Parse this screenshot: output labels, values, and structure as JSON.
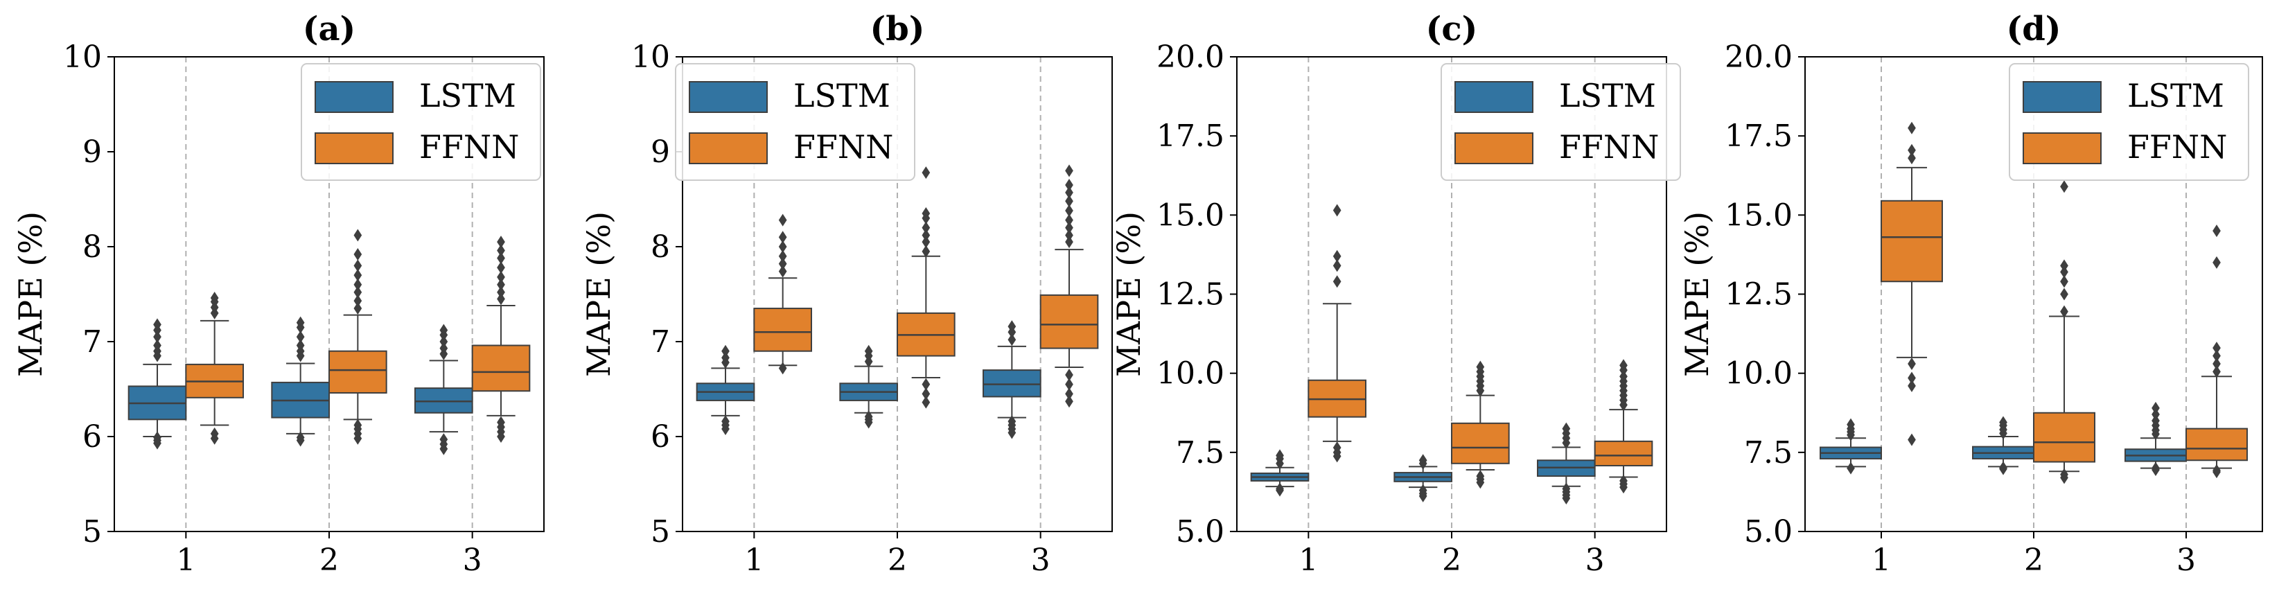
{
  "colors": {
    "lstm": "#3274a1",
    "ffnn": "#e1812c",
    "edge": "#3f3f3f",
    "grid": "#b0b0b0",
    "axis": "#000000"
  },
  "chart_data": [
    {
      "type": "boxplot",
      "title": "(a)",
      "xlabel": "",
      "ylabel": "MAPE (%)",
      "categories": [
        "1",
        "2",
        "3"
      ],
      "ylim": [
        5,
        10
      ],
      "yticks": [
        5,
        6,
        7,
        8,
        9,
        10
      ],
      "ytick_labels": [
        "5",
        "6",
        "7",
        "8",
        "9",
        "10"
      ],
      "legend": {
        "position": "top-right",
        "entries": [
          "LSTM",
          "FFNN"
        ]
      },
      "grid": {
        "x": true,
        "y": false
      },
      "series": [
        {
          "name": "LSTM",
          "boxes": [
            {
              "min": 6.0,
              "q1": 6.18,
              "median": 6.35,
              "q3": 6.53,
              "max": 6.76,
              "outliers": [
                5.93,
                5.96,
                5.99,
                6.85,
                6.9,
                6.96,
                7.05,
                7.12,
                7.18
              ]
            },
            {
              "min": 6.03,
              "q1": 6.2,
              "median": 6.38,
              "q3": 6.57,
              "max": 6.77,
              "outliers": [
                5.96,
                5.99,
                6.85,
                6.9,
                6.96,
                7.05,
                7.15,
                7.2
              ]
            },
            {
              "min": 6.05,
              "q1": 6.25,
              "median": 6.37,
              "q3": 6.51,
              "max": 6.8,
              "outliers": [
                5.87,
                5.92,
                5.97,
                6.87,
                6.93,
                7.0,
                7.07,
                7.12
              ]
            }
          ]
        },
        {
          "name": "FFNN",
          "boxes": [
            {
              "min": 6.12,
              "q1": 6.41,
              "median": 6.58,
              "q3": 6.76,
              "max": 7.22,
              "outliers": [
                5.98,
                6.03,
                7.3,
                7.36,
                7.42,
                7.46
              ]
            },
            {
              "min": 6.18,
              "q1": 6.46,
              "median": 6.7,
              "q3": 6.9,
              "max": 7.28,
              "outliers": [
                5.98,
                6.03,
                6.08,
                6.12,
                7.35,
                7.43,
                7.52,
                7.6,
                7.7,
                7.8,
                7.92,
                8.12
              ]
            },
            {
              "min": 6.22,
              "q1": 6.48,
              "median": 6.68,
              "q3": 6.96,
              "max": 7.38,
              "outliers": [
                6.0,
                6.05,
                6.1,
                6.15,
                7.45,
                7.52,
                7.6,
                7.68,
                7.78,
                7.88,
                7.96,
                8.05
              ]
            }
          ]
        }
      ]
    },
    {
      "type": "boxplot",
      "title": "(b)",
      "xlabel": "",
      "ylabel": "MAPE (%)",
      "categories": [
        "1",
        "2",
        "3"
      ],
      "ylim": [
        5,
        10
      ],
      "yticks": [
        5,
        6,
        7,
        8,
        9,
        10
      ],
      "ytick_labels": [
        "5",
        "6",
        "7",
        "8",
        "9",
        "10"
      ],
      "legend": {
        "position": "top-left",
        "entries": [
          "LSTM",
          "FFNN"
        ]
      },
      "grid": {
        "x": true,
        "y": false
      },
      "series": [
        {
          "name": "LSTM",
          "boxes": [
            {
              "min": 6.22,
              "q1": 6.38,
              "median": 6.47,
              "q3": 6.56,
              "max": 6.72,
              "outliers": [
                6.08,
                6.12,
                6.16,
                6.78,
                6.83,
                6.9
              ]
            },
            {
              "min": 6.25,
              "q1": 6.38,
              "median": 6.47,
              "q3": 6.56,
              "max": 6.74,
              "outliers": [
                6.15,
                6.18,
                6.21,
                6.79,
                6.85,
                6.9
              ]
            },
            {
              "min": 6.2,
              "q1": 6.42,
              "median": 6.55,
              "q3": 6.7,
              "max": 6.95,
              "outliers": [
                6.04,
                6.08,
                6.12,
                6.16,
                7.02,
                7.1,
                7.16
              ]
            }
          ]
        },
        {
          "name": "FFNN",
          "boxes": [
            {
              "min": 6.75,
              "q1": 6.9,
              "median": 7.1,
              "q3": 7.35,
              "max": 7.67,
              "outliers": [
                6.72,
                7.74,
                7.82,
                7.9,
                8.0,
                8.1,
                8.28
              ]
            },
            {
              "min": 6.62,
              "q1": 6.85,
              "median": 7.07,
              "q3": 7.3,
              "max": 7.9,
              "outliers": [
                6.36,
                6.45,
                6.55,
                7.95,
                8.05,
                8.12,
                8.2,
                8.3,
                8.35,
                8.78
              ]
            },
            {
              "min": 6.73,
              "q1": 6.93,
              "median": 7.18,
              "q3": 7.49,
              "max": 7.97,
              "outliers": [
                6.37,
                6.45,
                6.55,
                6.65,
                8.05,
                8.12,
                8.2,
                8.28,
                8.38,
                8.48,
                8.57,
                8.65,
                8.8
              ]
            }
          ]
        }
      ]
    },
    {
      "type": "boxplot",
      "title": "(c)",
      "xlabel": "",
      "ylabel": "MAPE (%)",
      "categories": [
        "1",
        "2",
        "3"
      ],
      "ylim": [
        5,
        20
      ],
      "yticks": [
        5,
        7.5,
        10,
        12.5,
        15,
        17.5,
        20
      ],
      "ytick_labels": [
        "5.0",
        "7.5",
        "10.0",
        "12.5",
        "15.0",
        "17.5",
        "20.0"
      ],
      "legend": {
        "position": "top-right",
        "entries": [
          "LSTM",
          "FFNN"
        ]
      },
      "grid": {
        "x": true,
        "y": false
      },
      "series": [
        {
          "name": "LSTM",
          "boxes": [
            {
              "min": 6.42,
              "q1": 6.6,
              "median": 6.72,
              "q3": 6.84,
              "max": 7.02,
              "outliers": [
                6.3,
                6.35,
                7.15,
                7.3,
                7.4
              ]
            },
            {
              "min": 6.4,
              "q1": 6.58,
              "median": 6.72,
              "q3": 6.86,
              "max": 7.05,
              "outliers": [
                6.12,
                6.2,
                6.3,
                7.15,
                7.25
              ]
            },
            {
              "min": 6.43,
              "q1": 6.75,
              "median": 7.02,
              "q3": 7.25,
              "max": 7.66,
              "outliers": [
                6.05,
                6.15,
                6.25,
                6.35,
                7.8,
                7.95,
                8.1,
                8.25
              ]
            }
          ]
        },
        {
          "name": "FFNN",
          "boxes": [
            {
              "min": 7.85,
              "q1": 8.62,
              "median": 9.18,
              "q3": 9.78,
              "max": 12.2,
              "outliers": [
                7.38,
                7.5,
                7.65,
                12.9,
                13.4,
                13.7,
                15.15
              ]
            },
            {
              "min": 6.95,
              "q1": 7.15,
              "median": 7.65,
              "q3": 8.42,
              "max": 9.3,
              "outliers": [
                6.55,
                6.65,
                6.75,
                9.45,
                9.6,
                9.75,
                9.9,
                10.05,
                10.2
              ]
            },
            {
              "min": 6.72,
              "q1": 7.08,
              "median": 7.4,
              "q3": 7.85,
              "max": 8.85,
              "outliers": [
                6.4,
                6.5,
                6.6,
                9.0,
                9.15,
                9.3,
                9.45,
                9.6,
                9.75,
                9.9,
                10.1,
                10.25
              ]
            }
          ]
        }
      ]
    },
    {
      "type": "boxplot",
      "title": "(d)",
      "xlabel": "",
      "ylabel": "MAPE (%)",
      "categories": [
        "1",
        "2",
        "3"
      ],
      "ylim": [
        5,
        20
      ],
      "yticks": [
        5,
        7.5,
        10,
        12.5,
        15,
        17.5,
        20
      ],
      "ytick_labels": [
        "5.0",
        "7.5",
        "10.0",
        "12.5",
        "15.0",
        "17.5",
        "20.0"
      ],
      "legend": {
        "position": "top-right",
        "entries": [
          "LSTM",
          "FFNN"
        ]
      },
      "grid": {
        "x": true,
        "y": false
      },
      "series": [
        {
          "name": "LSTM",
          "boxes": [
            {
              "min": 7.05,
              "q1": 7.3,
              "median": 7.48,
              "q3": 7.66,
              "max": 7.95,
              "outliers": [
                7.0,
                8.05,
                8.15,
                8.25,
                8.38
              ]
            },
            {
              "min": 7.05,
              "q1": 7.3,
              "median": 7.48,
              "q3": 7.68,
              "max": 8.0,
              "outliers": [
                6.98,
                7.02,
                8.1,
                8.22,
                8.35,
                8.45
              ]
            },
            {
              "min": 7.0,
              "q1": 7.22,
              "median": 7.4,
              "q3": 7.6,
              "max": 7.95,
              "outliers": [
                6.95,
                7.0,
                8.08,
                8.2,
                8.35,
                8.5,
                8.7,
                8.9
              ]
            }
          ]
        },
        {
          "name": "FFNN",
          "boxes": [
            {
              "min": 10.5,
              "q1": 12.9,
              "median": 14.3,
              "q3": 15.45,
              "max": 16.5,
              "outliers": [
                7.9,
                9.6,
                9.85,
                10.3,
                16.8,
                17.05,
                17.75
              ]
            },
            {
              "min": 6.9,
              "q1": 7.2,
              "median": 7.82,
              "q3": 8.75,
              "max": 11.8,
              "outliers": [
                6.7,
                6.8,
                11.95,
                12.5,
                12.9,
                13.2,
                13.4,
                15.9
              ]
            },
            {
              "min": 7.0,
              "q1": 7.25,
              "median": 7.62,
              "q3": 8.25,
              "max": 9.9,
              "outliers": [
                6.88,
                6.93,
                10.05,
                10.3,
                10.55,
                10.8,
                13.5,
                14.5
              ]
            }
          ]
        }
      ]
    }
  ]
}
